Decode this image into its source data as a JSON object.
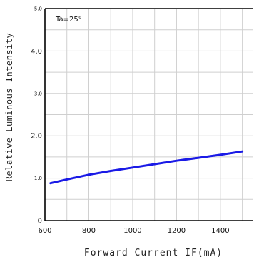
{
  "chart_data": {
    "type": "line",
    "xlabel": "Forward Current IF(mA)",
    "ylabel": "Relative Luminous Intensity",
    "annotation": "Ta=25°",
    "xlim": [
      600,
      1550
    ],
    "ylim": [
      0,
      5.0
    ],
    "x_ticks": [
      {
        "value": 600,
        "label": "600"
      },
      {
        "value": 800,
        "label": "800"
      },
      {
        "value": 1000,
        "label": "1000"
      },
      {
        "value": 1200,
        "label": "1200"
      },
      {
        "value": 1400,
        "label": "1400"
      }
    ],
    "y_ticks": [
      {
        "value": 0,
        "label": "0",
        "size": "large"
      },
      {
        "value": 1.0,
        "label": "1.0",
        "size": "small"
      },
      {
        "value": 2.0,
        "label": "2.0",
        "size": "large"
      },
      {
        "value": 3.0,
        "label": "3.0",
        "size": "small"
      },
      {
        "value": 4.0,
        "label": "4.0",
        "size": "large"
      },
      {
        "value": 5.0,
        "label": "5.0",
        "size": "small"
      }
    ],
    "grid": true,
    "series_color": "#1a1ae6",
    "series": [
      {
        "x": [
          625,
          700,
          800,
          900,
          1000,
          1100,
          1200,
          1300,
          1400,
          1500
        ],
        "y": [
          0.88,
          0.97,
          1.08,
          1.17,
          1.25,
          1.33,
          1.41,
          1.48,
          1.55,
          1.63
        ]
      }
    ]
  }
}
